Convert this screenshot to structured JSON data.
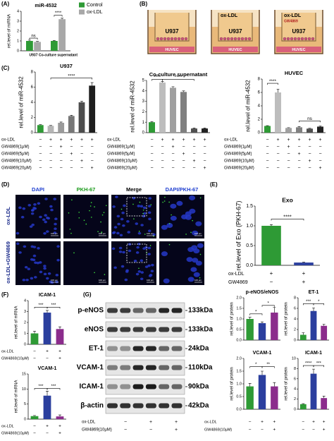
{
  "chart_data": [
    {
      "type": "bar",
      "title": "miR-4532",
      "y_label": "rel.level of miRNA",
      "categories": [
        "U937",
        "Co-culture supernatant"
      ],
      "series": [
        {
          "name": "Control",
          "color": "#2e9a35",
          "values": [
            1.0,
            1.0
          ],
          "errors": [
            0.08,
            0.05
          ]
        },
        {
          "name": "ox-LDL",
          "color": "#a8a8a8",
          "values": [
            0.9,
            3.2
          ],
          "errors": [
            0.05,
            0.1
          ]
        }
      ],
      "ylim": [
        0,
        4
      ],
      "yticks": [
        0,
        1,
        2,
        3,
        4
      ],
      "annotations": [
        "ns",
        "****"
      ]
    },
    {
      "type": "bar",
      "title": "U937",
      "y_label": "rel.level of miR-4532",
      "values": [
        1.0,
        0.9,
        1.3,
        2.2,
        4.0,
        6.2
      ],
      "errors": [
        0.05,
        0.05,
        0.1,
        0.1,
        0.15,
        0.4
      ],
      "colors": [
        "#2e9a35",
        "#b5b5b5",
        "#9a9a9a",
        "#777777",
        "#4d4d4d",
        "#1e1e1e"
      ],
      "ylim": [
        0,
        8
      ],
      "yticks": [
        0,
        2,
        4,
        6,
        8
      ],
      "annotations": [
        "****"
      ],
      "conditions": [
        {
          "label": "ox-LDL",
          "marks": [
            "−",
            "+",
            "+",
            "+",
            "+",
            "+"
          ]
        },
        {
          "label": "GW4869(1μM)",
          "marks": [
            "−",
            "−",
            "+",
            "−",
            "−",
            "−"
          ]
        },
        {
          "label": "GW4869(5μM)",
          "marks": [
            "−",
            "−",
            "−",
            "+",
            "−",
            "−"
          ]
        },
        {
          "label": "GW4869(10μM)",
          "marks": [
            "−",
            "−",
            "−",
            "−",
            "+",
            "−"
          ]
        },
        {
          "label": "GW4869(20μM)",
          "marks": [
            "−",
            "−",
            "−",
            "−",
            "−",
            "+"
          ]
        }
      ]
    },
    {
      "type": "bar",
      "title": "Co-culture supernatant",
      "y_label": "rel.level of miR-4532",
      "values": [
        1.0,
        4.8,
        4.3,
        3.9,
        0.4,
        0.4
      ],
      "errors": [
        0.05,
        0.1,
        0.1,
        0.1,
        0.05,
        0.05
      ],
      "colors": [
        "#2e9a35",
        "#bdbdbd",
        "#a0a0a0",
        "#808080",
        "#505050",
        "#222222"
      ],
      "ylim": [
        0,
        5
      ],
      "yticks": [
        0,
        1,
        2,
        3,
        4,
        5
      ],
      "annotations": [
        "****",
        "****"
      ],
      "conditions": [
        {
          "label": "ox-LDL",
          "marks": [
            "−",
            "+",
            "+",
            "+",
            "+",
            "+"
          ]
        },
        {
          "label": "GW4869(1μM)",
          "marks": [
            "−",
            "−",
            "+",
            "−",
            "−",
            "−"
          ]
        },
        {
          "label": "GW4869(5μM)",
          "marks": [
            "−",
            "−",
            "−",
            "+",
            "−",
            "−"
          ]
        },
        {
          "label": "GW4869(10μM)",
          "marks": [
            "−",
            "−",
            "−",
            "−",
            "+",
            "−"
          ]
        },
        {
          "label": "GW4869(20μM)",
          "marks": [
            "−",
            "−",
            "−",
            "−",
            "−",
            "+"
          ]
        }
      ]
    },
    {
      "type": "bar",
      "title": "HUVEC",
      "y_label": "rel.level of miR-4532",
      "values": [
        1.0,
        6.0,
        0.7,
        0.8,
        0.6,
        0.9
      ],
      "errors": [
        0.05,
        0.5,
        0.05,
        0.1,
        0.05,
        0.1
      ],
      "colors": [
        "#2e9a35",
        "#bdbdbd",
        "#a0a0a0",
        "#808080",
        "#505050",
        "#222222"
      ],
      "ylim": [
        0,
        8
      ],
      "yticks": [
        0,
        2,
        4,
        6,
        8
      ],
      "annotations": [
        "****",
        "ns"
      ],
      "conditions": [
        {
          "label": "ox-LDL",
          "marks": [
            "−",
            "+",
            "+",
            "+",
            "+",
            "+"
          ]
        },
        {
          "label": "GW4869(1μM)",
          "marks": [
            "−",
            "−",
            "+",
            "−",
            "−",
            "−"
          ]
        },
        {
          "label": "GW4869(5μM)",
          "marks": [
            "−",
            "−",
            "−",
            "+",
            "−",
            "−"
          ]
        },
        {
          "label": "GW4869(10μM)",
          "marks": [
            "−",
            "−",
            "−",
            "−",
            "+",
            "−"
          ]
        },
        {
          "label": "GW4869(20μM)",
          "marks": [
            "−",
            "−",
            "−",
            "−",
            "−",
            "+"
          ]
        }
      ]
    },
    {
      "type": "bar",
      "title": "Exo",
      "y_label": "rel.level of Exo (PKH-67)",
      "values": [
        1.0,
        0.07
      ],
      "errors": [
        0.03,
        0.01
      ],
      "colors": [
        "#2e9a35",
        "#2b3f9e"
      ],
      "ylim": [
        0,
        1.5
      ],
      "yticks": [
        {
          "value": 0,
          "label": "0.0"
        },
        0.5,
        {
          "value": 1,
          "label": "1.0"
        },
        1.5
      ],
      "annotations": [
        "****"
      ],
      "conditions": [
        {
          "label": "ox-LDL",
          "marks": [
            "+",
            "+"
          ]
        },
        {
          "label": "GW4869",
          "marks": [
            "−",
            "+"
          ]
        }
      ]
    },
    {
      "type": "bar",
      "title": "ICAM-1",
      "y_label": "rel.level of mRNA",
      "values": [
        1.0,
        2.9,
        1.4
      ],
      "errors": [
        0.2,
        0.2,
        0.2
      ],
      "colors": [
        "#2e9a35",
        "#2b3f9e",
        "#8b2c8c"
      ],
      "ylim": [
        0,
        4
      ],
      "yticks": [
        0,
        1,
        2,
        3,
        4
      ],
      "annotations": [
        "***",
        "***"
      ],
      "conditions": [
        {
          "label": "ox-LDL",
          "marks": [
            "−",
            "+",
            "+"
          ]
        },
        {
          "label": "GW4869(10μM)",
          "marks": [
            "−",
            "−",
            "+"
          ]
        }
      ]
    },
    {
      "type": "bar",
      "title": "VCAM-1",
      "y_label": "rel.level of mRNA",
      "values": [
        1.0,
        7.8,
        0.9
      ],
      "errors": [
        0.2,
        1.5,
        0.5
      ],
      "colors": [
        "#2e9a35",
        "#2b3f9e",
        "#8b2c8c"
      ],
      "ylim": [
        0,
        15
      ],
      "yticks": [
        0,
        5,
        10,
        15
      ],
      "annotations": [
        "***",
        "***"
      ],
      "conditions": [
        {
          "label": "ox-LDL",
          "marks": [
            "−",
            "+",
            "+"
          ]
        },
        {
          "label": "GW4869(10μM)",
          "marks": [
            "−",
            "−",
            "+"
          ]
        }
      ]
    },
    {
      "type": "bar",
      "title": "p-eNOS/eNOS",
      "y_label": "rel.level of protein",
      "values": [
        1.0,
        0.8,
        1.3
      ],
      "errors": [
        0.08,
        0.06,
        0.25
      ],
      "colors": [
        "#2e9a35",
        "#2b3f9e",
        "#8b2c8c"
      ],
      "ylim": [
        0,
        2
      ],
      "yticks": [
        {
          "value": 0,
          "label": "0.0"
        },
        0.5,
        {
          "value": 1,
          "label": "1.0"
        },
        1.5,
        {
          "value": 2,
          "label": "2.0"
        }
      ],
      "annotations": [
        "*",
        "*"
      ]
    },
    {
      "type": "bar",
      "title": "ET-1",
      "y_label": "rel.level of protein",
      "values": [
        1.0,
        5.5,
        2.7
      ],
      "errors": [
        0.4,
        0.6,
        0.3
      ],
      "colors": [
        "#2e9a35",
        "#2b3f9e",
        "#8b2c8c"
      ],
      "ylim": [
        0,
        8
      ],
      "yticks": [
        0,
        2,
        4,
        6,
        8
      ],
      "annotations": [
        "***",
        "*"
      ]
    },
    {
      "type": "bar",
      "title": "VCAM-1",
      "y_label": "rel.level of protein",
      "values": [
        0.9,
        1.35,
        0.9
      ],
      "errors": [
        0.12,
        0.15,
        0.15
      ],
      "colors": [
        "#2e9a35",
        "#2b3f9e",
        "#8b2c8c"
      ],
      "ylim": [
        0,
        2
      ],
      "yticks": [
        {
          "value": 0,
          "label": "0.0"
        },
        0.5,
        {
          "value": 1,
          "label": "1.0"
        },
        1.5,
        {
          "value": 2,
          "label": "2.0"
        }
      ],
      "annotations": [
        "*",
        "**"
      ],
      "conditions": [
        {
          "label": "ox-LDL",
          "marks": [
            "−",
            "+",
            "+"
          ]
        },
        {
          "label": "GW4869(10μM)",
          "marks": [
            "−",
            "−",
            "+"
          ]
        }
      ]
    },
    {
      "type": "bar",
      "title": "ICAM-1",
      "y_label": "rel.level of protein",
      "values": [
        1.0,
        7.0,
        2.2
      ],
      "errors": [
        0.1,
        0.9,
        0.4
      ],
      "colors": [
        "#2e9a35",
        "#2b3f9e",
        "#8b2c8c"
      ],
      "ylim": [
        0,
        10
      ],
      "yticks": [
        0,
        2,
        4,
        6,
        8,
        10
      ],
      "annotations": [
        "****",
        "***"
      ],
      "conditions": [
        {
          "marks": [
            "−",
            "+",
            "+"
          ]
        },
        {
          "marks": [
            "−",
            "−",
            "+"
          ]
        }
      ]
    }
  ],
  "figure": {
    "panels": [
      "(A)",
      "(B)",
      "(C)",
      "(D)",
      "(E)",
      "(F)",
      "(G)"
    ],
    "schematic": {
      "top_cells": "U937",
      "bottom_cells": "HUVEC",
      "treatments": [
        "ox-LDL",
        "GW4869"
      ]
    },
    "microscopy": {
      "columns": [
        "DAPI",
        "PKH-67",
        "Merge",
        "DAPI/PKH-67"
      ],
      "rows": [
        "ox-LDL",
        "ox-LDL+GW4869"
      ],
      "scale": "100 μm"
    },
    "blot": {
      "proteins": [
        "p-eNOS",
        "eNOS",
        "ET-1",
        "VCAM-1",
        "ICAM-1",
        "β-actin"
      ],
      "sizes": [
        "133kDa",
        "133kDa",
        "24kDa",
        "110kDa",
        "90kDa",
        "42kDa"
      ],
      "conditions": [
        {
          "label": "ox-LDL",
          "marks": [
            "−",
            "+",
            "+"
          ]
        },
        {
          "label": "GW4869(10μM)",
          "marks": [
            "−",
            "−",
            "+"
          ]
        }
      ]
    }
  }
}
